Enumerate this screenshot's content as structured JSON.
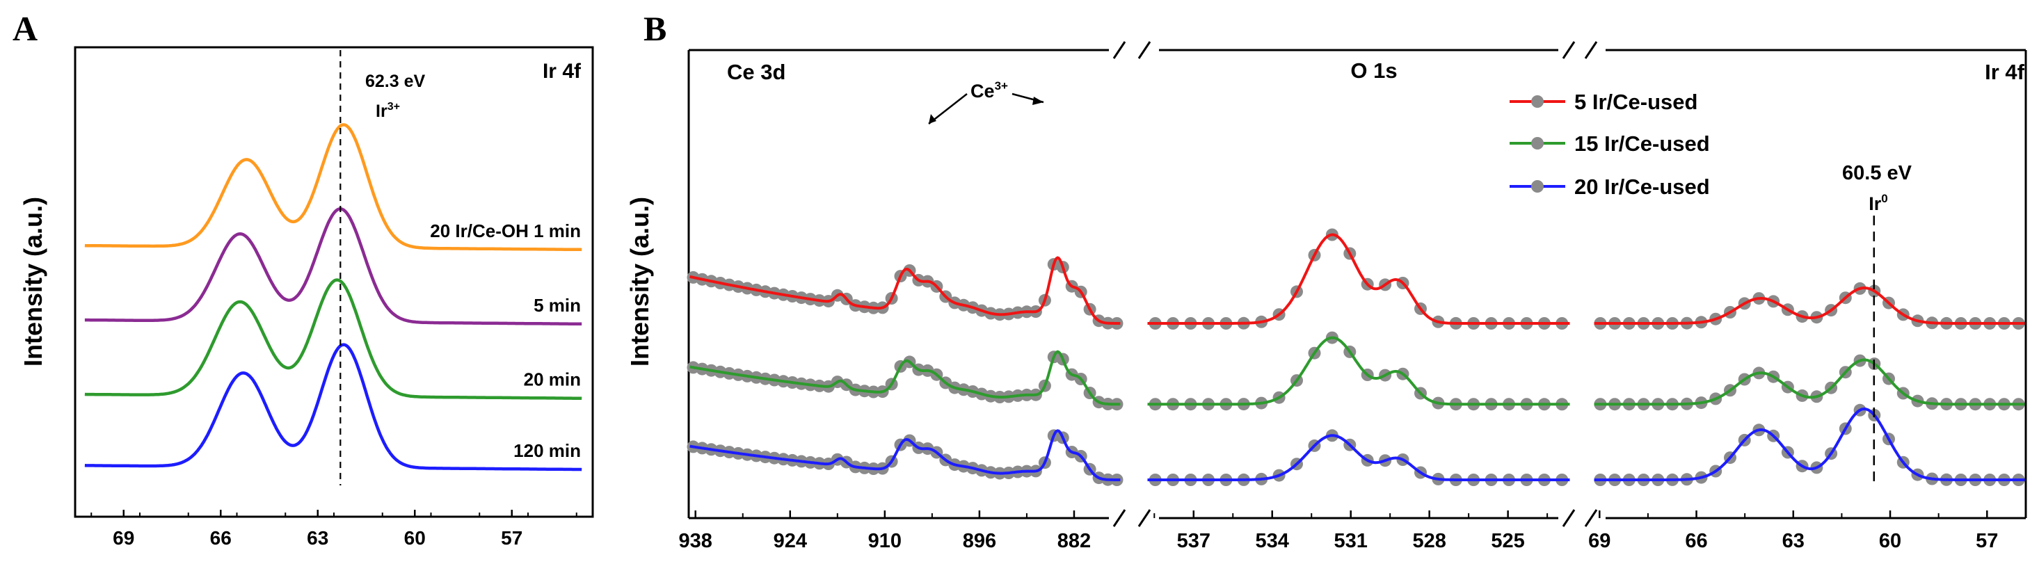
{
  "panels": {
    "a": "A",
    "b": "B"
  },
  "colors": {
    "orange": "#ff9a1f",
    "purple": "#8b2b93",
    "green": "#2e9b2e",
    "blue": "#1d1dff",
    "red": "#f01414",
    "gray": "#8a8a8a",
    "dashed": "#000000"
  },
  "chart_data": [
    {
      "panel": "A",
      "type": "line",
      "ylabel": "Intensity (a.u.)",
      "panel_title": "Ir 4f",
      "x_reversed": true,
      "xlim": [
        70.5,
        54.5
      ],
      "xticks": [
        "69",
        "66",
        "63",
        "60",
        "57"
      ],
      "annotation": {
        "line1": "62.3 eV",
        "line2": "Ir",
        "sup": "3+",
        "x": 62.3
      },
      "series": [
        {
          "name": "20 Ir/Ce-OH 1 min",
          "label": "20 Ir/Ce-OH 1 min",
          "color": "#ff9a1f",
          "offset": 3.4,
          "peaks": [
            {
              "c": 65.2,
              "a": 1.35,
              "w": 0.75
            },
            {
              "c": 62.2,
              "a": 1.9,
              "w": 0.72
            }
          ]
        },
        {
          "name": "5 min",
          "label": "5 min",
          "color": "#8b2b93",
          "offset": 2.25,
          "peaks": [
            {
              "c": 65.4,
              "a": 1.35,
              "w": 0.75
            },
            {
              "c": 62.3,
              "a": 1.75,
              "w": 0.72
            }
          ]
        },
        {
          "name": "20 min",
          "label": "20 min",
          "color": "#2e9b2e",
          "offset": 1.1,
          "peaks": [
            {
              "c": 65.4,
              "a": 1.45,
              "w": 0.78
            },
            {
              "c": 62.4,
              "a": 1.8,
              "w": 0.72
            }
          ]
        },
        {
          "name": "120 min",
          "label": "120 min",
          "color": "#1d1dff",
          "offset": 0.0,
          "peaks": [
            {
              "c": 65.3,
              "a": 1.45,
              "w": 0.75
            },
            {
              "c": 62.2,
              "a": 1.9,
              "w": 0.7
            }
          ]
        }
      ]
    },
    {
      "panel": "B",
      "type": "line",
      "ylabel": "Intensity (a.u.)",
      "legend": [
        "5 Ir/Ce-used",
        "15 Ir/Ce-used",
        "20 Ir/Ce-used"
      ],
      "legend_placement": "top-center",
      "segments": [
        {
          "title": "Ce 3d",
          "xlim": [
            939,
            875
          ],
          "xticks": [
            "938",
            "924",
            "910",
            "896",
            "882"
          ],
          "annotation": {
            "label": "Ce",
            "sup": "3+"
          },
          "peaks": [
            {
              "c": 916.5,
              "a": 0.18,
              "w": 0.8
            },
            {
              "c": 907.0,
              "a": 0.72,
              "w": 1.3
            },
            {
              "c": 903.5,
              "a": 0.55,
              "w": 1.8
            },
            {
              "c": 898.5,
              "a": 0.22,
              "w": 3.0
            },
            {
              "c": 888.5,
              "a": 0.18,
              "w": 3.0
            },
            {
              "c": 884.5,
              "a": 1.1,
              "w": 1.1
            },
            {
              "c": 881.5,
              "a": 0.62,
              "w": 1.4
            }
          ],
          "baseline": {
            "left": 1.0,
            "right": 0.0
          }
        },
        {
          "title": "O 1s",
          "xlim": [
            538.8,
            522.6
          ],
          "xticks": [
            "537",
            "534",
            "531",
            "528",
            "525"
          ],
          "peaks": [
            {
              "c": 531.7,
              "a": 1.7,
              "w": 0.95
            },
            {
              "c": 529.2,
              "a": 0.78,
              "w": 0.6
            }
          ],
          "baseline": {
            "left": 0.0,
            "right": 0.0
          }
        },
        {
          "title": "Ir 4f",
          "xlim": [
            69.2,
            55.8
          ],
          "xticks": [
            "69",
            "66",
            "63",
            "60",
            "57"
          ],
          "annotation": {
            "line1": "60.5 eV",
            "line2": "Ir",
            "sup": "0",
            "x": 60.5
          },
          "peaks": [
            {
              "c": 64.0,
              "a": 0.6,
              "w": 0.75
            },
            {
              "c": 60.8,
              "a": 0.85,
              "w": 0.72
            }
          ],
          "baseline": {
            "left": 0.0,
            "right": 0.0
          }
        }
      ],
      "series": [
        {
          "name": "5 Ir/Ce-used",
          "color": "#f01414",
          "offset": 3.0,
          "scale": [
            1.0,
            1.0,
            0.8
          ]
        },
        {
          "name": "15 Ir/Ce-used",
          "color": "#2e9b2e",
          "offset": 1.45,
          "scale": [
            0.8,
            0.75,
            1.0
          ]
        },
        {
          "name": "20 Ir/Ce-used",
          "color": "#1d1dff",
          "offset": 0.0,
          "scale": [
            0.75,
            0.5,
            1.6
          ]
        }
      ]
    }
  ]
}
